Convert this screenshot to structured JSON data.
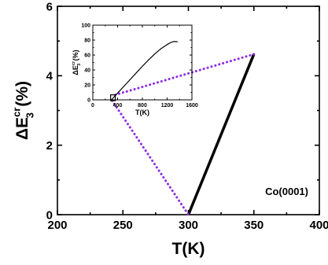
{
  "chart_data": [
    {
      "type": "line",
      "xlabel": "T(K)",
      "ylabel": {
        "base": "ΔE",
        "sup": "cr",
        "sub": "3",
        "suffix": "(%)"
      },
      "xlim": [
        200,
        400
      ],
      "ylim": [
        0,
        6
      ],
      "x_ticks": [
        200,
        250,
        300,
        350,
        400
      ],
      "y_ticks": [
        0,
        2,
        4,
        6
      ],
      "x_tick_labels": [
        "200",
        "250",
        "300",
        "350",
        "400"
      ],
      "y_tick_labels": [
        "0",
        "2",
        "4",
        "6"
      ],
      "annotation": "Co(0001)",
      "series": [
        {
          "x": [
            300,
            350
          ],
          "y": [
            0,
            4.62
          ],
          "color": "#000000"
        }
      ],
      "grid": false
    },
    {
      "type": "line",
      "xlabel": "T(K)",
      "ylabel": {
        "base": "ΔE",
        "sup": "cr",
        "sub": "3",
        "suffix": "(%)"
      },
      "xlim": [
        0,
        1600
      ],
      "ylim": [
        0,
        100
      ],
      "x_ticks": [
        0,
        400,
        800,
        1200,
        1600
      ],
      "y_ticks": [
        0,
        20,
        40,
        60,
        80,
        100
      ],
      "x_tick_labels": [
        "0",
        "400",
        "800",
        "1200",
        "1600"
      ],
      "y_tick_labels": [
        "0",
        "20",
        "40",
        "60",
        "80",
        "100"
      ],
      "series": [
        {
          "x": [
            300,
            350,
            400,
            500,
            600,
            700,
            800,
            900,
            1000,
            1100,
            1200,
            1250,
            1300,
            1350,
            1370
          ],
          "y": [
            0,
            4.6,
            9,
            18,
            27,
            36,
            45,
            53.5,
            61.5,
            68.5,
            74,
            76.5,
            78,
            78,
            77.6
          ],
          "color": "#000000"
        }
      ],
      "highlight_box": {
        "x": [
          300,
          350
        ],
        "y": [
          0,
          4.62
        ]
      },
      "grid": false
    }
  ],
  "zoom_lines_color": "#8b2be2"
}
